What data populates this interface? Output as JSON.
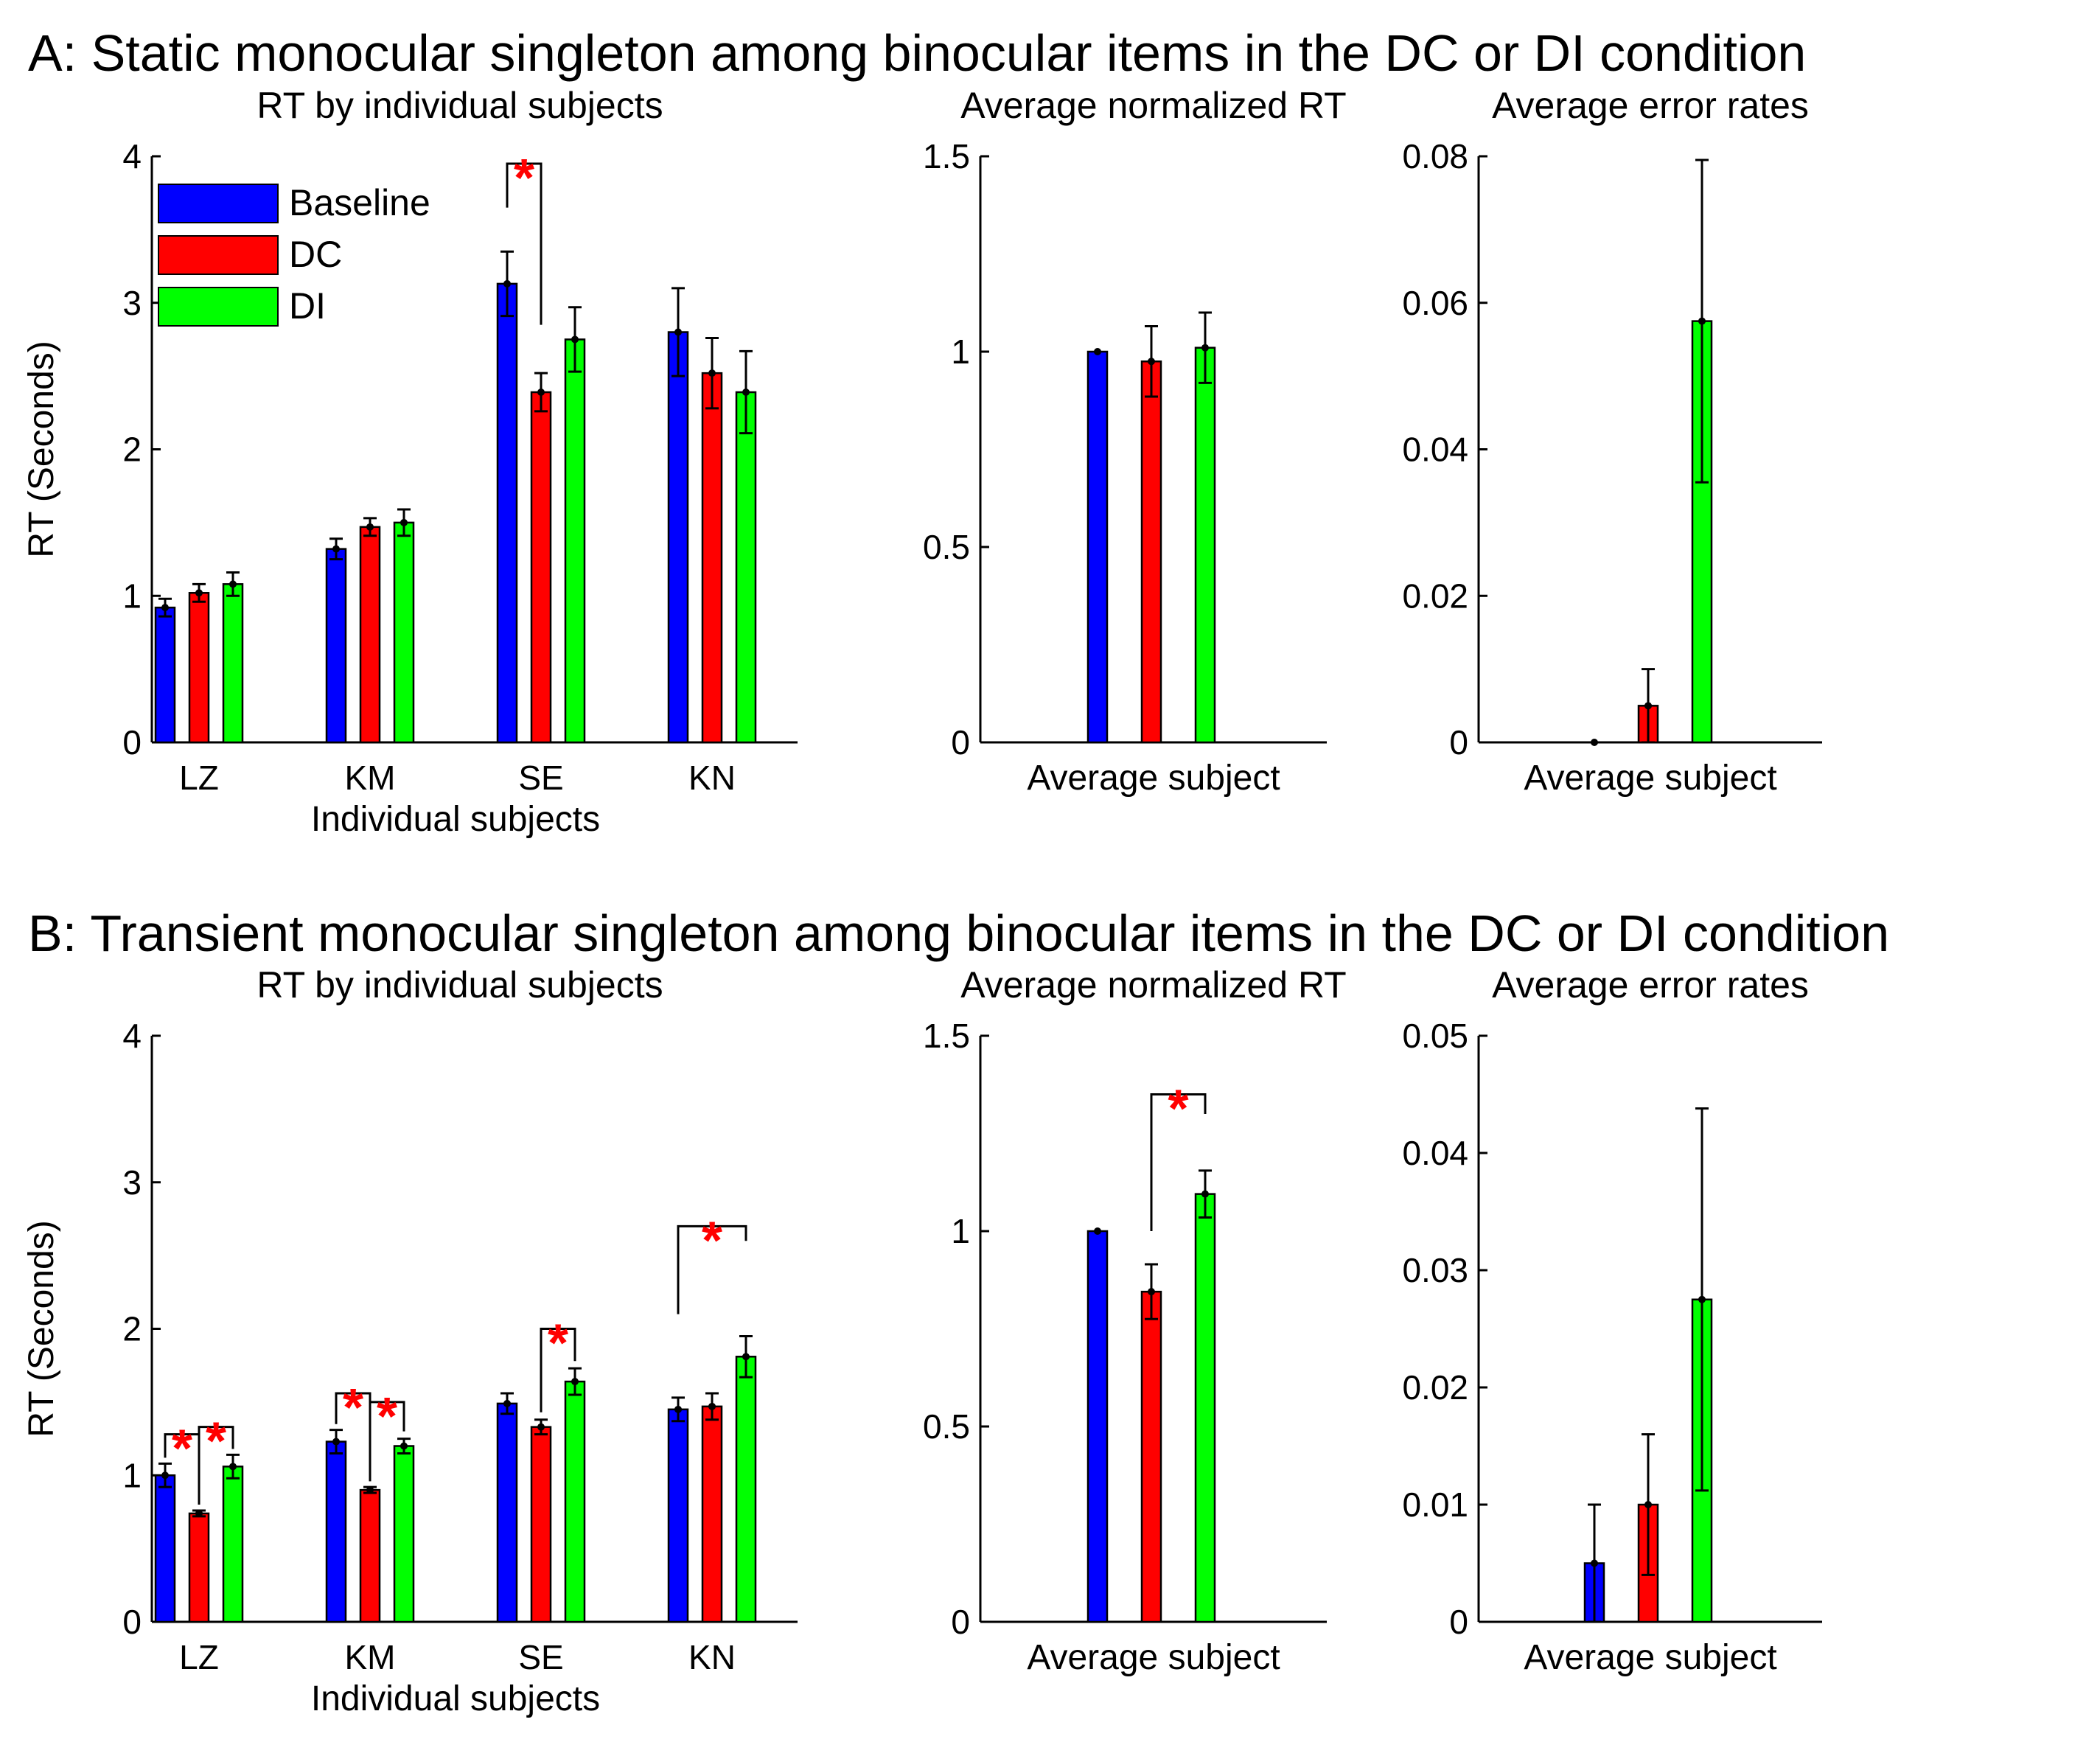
{
  "colors": {
    "Baseline": "#0000ff",
    "DC": "#ff0000",
    "DI": "#00ff00",
    "star": "#ff0000"
  },
  "star_glyph": "*",
  "panels": [
    {
      "title": "A: Static monocular singleton among binocular items in the DC or DI condition",
      "charts": [
        {
          "type": "bar",
          "title": "RT by individual subjects",
          "xlabel": "Individual subjects",
          "ylabel": "RT (Seconds)",
          "ylim": [
            0,
            4
          ],
          "yticks": [
            "0",
            "1",
            "2",
            "3",
            "4"
          ],
          "categories": [
            "LZ",
            "KM",
            "SE",
            "KN"
          ],
          "series": [
            {
              "name": "Baseline",
              "values": [
                0.92,
                1.32,
                3.13,
                2.8
              ],
              "errors": [
                0.06,
                0.07,
                0.22,
                0.3
              ]
            },
            {
              "name": "DC",
              "values": [
                1.02,
                1.47,
                2.39,
                2.52
              ],
              "errors": [
                0.06,
                0.06,
                0.13,
                0.24
              ]
            },
            {
              "name": "DI",
              "values": [
                1.08,
                1.5,
                2.75,
                2.39
              ],
              "errors": [
                0.08,
                0.09,
                0.22,
                0.28
              ]
            }
          ],
          "legend": [
            "Baseline",
            "DC",
            "DI"
          ],
          "significance": [
            {
              "cat": 2,
              "from": 0,
              "to": 1,
              "from_y": 3.65,
              "to_y": 2.85,
              "top": 3.95
            }
          ]
        },
        {
          "type": "bar",
          "title": "Average normalized RT",
          "xlabel": "Average subject",
          "ylim": [
            0,
            1.5
          ],
          "yticks": [
            "0",
            "0.5",
            "1",
            "1.5"
          ],
          "series": [
            {
              "name": "Baseline",
              "value": 1.0,
              "error": 0.0
            },
            {
              "name": "DC",
              "value": 0.975,
              "error": 0.09
            },
            {
              "name": "DI",
              "value": 1.01,
              "error": 0.09
            }
          ],
          "significance": []
        },
        {
          "type": "bar",
          "title": "Average error rates",
          "xlabel": "Average subject",
          "ylim": [
            0,
            0.08
          ],
          "yticks": [
            "0",
            "0.02",
            "0.04",
            "0.06",
            "0.08"
          ],
          "series": [
            {
              "name": "Baseline",
              "value": 0.0,
              "error": 0.0
            },
            {
              "name": "DC",
              "value": 0.005,
              "error": 0.005
            },
            {
              "name": "DI",
              "value": 0.0575,
              "error": 0.022
            }
          ],
          "significance": []
        }
      ]
    },
    {
      "title": "B: Transient monocular singleton among binocular items in the DC or DI condition",
      "charts": [
        {
          "type": "bar",
          "title": "RT by individual subjects",
          "xlabel": "Individual subjects",
          "ylabel": "RT (Seconds)",
          "ylim": [
            0,
            4
          ],
          "yticks": [
            "0",
            "1",
            "2",
            "3",
            "4"
          ],
          "categories": [
            "LZ",
            "KM",
            "SE",
            "KN"
          ],
          "series": [
            {
              "name": "Baseline",
              "values": [
                1.0,
                1.23,
                1.49,
                1.45
              ],
              "errors": [
                0.08,
                0.08,
                0.07,
                0.08
              ]
            },
            {
              "name": "DC",
              "values": [
                0.74,
                0.9,
                1.33,
                1.47
              ],
              "errors": [
                0.02,
                0.02,
                0.05,
                0.09
              ]
            },
            {
              "name": "DI",
              "values": [
                1.06,
                1.2,
                1.64,
                1.81
              ],
              "errors": [
                0.08,
                0.05,
                0.09,
                0.14
              ]
            }
          ],
          "significance": [
            {
              "cat": 0,
              "from": 0,
              "to": 1,
              "from_y": 1.12,
              "to_y": 0.8,
              "top": 1.28
            },
            {
              "cat": 0,
              "from": 1,
              "to": 2,
              "from_y": 0.8,
              "to_y": 1.18,
              "top": 1.33
            },
            {
              "cat": 1,
              "from": 0,
              "to": 1,
              "from_y": 1.35,
              "to_y": 0.96,
              "top": 1.56
            },
            {
              "cat": 1,
              "from": 1,
              "to": 2,
              "from_y": 0.96,
              "to_y": 1.3,
              "top": 1.5
            },
            {
              "cat": 2,
              "from": 1,
              "to": 2,
              "from_y": 1.43,
              "to_y": 1.78,
              "top": 2.0
            },
            {
              "cat": 3,
              "from": 0,
              "to": 2,
              "from_y": 2.1,
              "to_y": 2.6,
              "top": 2.7
            }
          ]
        },
        {
          "type": "bar",
          "title": "Average normalized RT",
          "xlabel": "Average subject",
          "ylim": [
            0,
            1.5
          ],
          "yticks": [
            "0",
            "0.5",
            "1",
            "1.5"
          ],
          "series": [
            {
              "name": "Baseline",
              "value": 1.0,
              "error": 0.0
            },
            {
              "name": "DC",
              "value": 0.845,
              "error": 0.07
            },
            {
              "name": "DI",
              "value": 1.095,
              "error": 0.06
            }
          ],
          "significance": [
            {
              "from": 1,
              "to": 2,
              "from_y": 1.0,
              "to_y": 1.3,
              "top": 1.35
            }
          ]
        },
        {
          "type": "bar",
          "title": "Average error rates",
          "xlabel": "Average subject",
          "ylim": [
            0,
            0.05
          ],
          "yticks": [
            "0",
            "0.01",
            "0.02",
            "0.03",
            "0.04",
            "0.05"
          ],
          "series": [
            {
              "name": "Baseline",
              "value": 0.005,
              "error": 0.005
            },
            {
              "name": "DC",
              "value": 0.01,
              "error": 0.006
            },
            {
              "name": "DI",
              "value": 0.0275,
              "error": 0.0163
            }
          ],
          "significance": []
        }
      ]
    }
  ]
}
